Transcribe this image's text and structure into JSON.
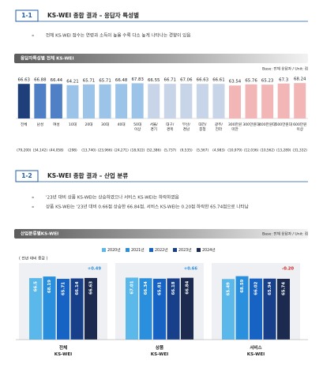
{
  "sections": [
    {
      "number": "1-1",
      "title": "KS-WEI 종합 결과 – 응답자 특성별",
      "bullets": [
        "전체 KS-WEI 점수는 연령과 소득이 높을 수록 다소 높게 나타나는 경향이 있음"
      ]
    },
    {
      "number": "1-2",
      "title": "KS-WEI 종합 결과 – 산업 분류",
      "bullets": [
        "'23년 대비 상품 KS-WEI는 상승하였으나 서비스 KS-WEI는 하락하였음",
        "상품 KS-WEI는 '23년 대비 0.66점 상승한 66.84점, 서비스 KS-WEI는 0.20점 하락한 65.74점으로 나타남"
      ]
    }
  ],
  "chart_data": [
    {
      "type": "bar",
      "title": "응답자특성별 전체 KS-WEI",
      "base_note": "Base: 전체 응답자 / Unit: 점",
      "categories": [
        "전체",
        "남성",
        "여성",
        "10대",
        "20대",
        "30대",
        "40대",
        "50대 이상",
        "서울/ 경기",
        "대구/ 경북",
        "부산/ 경남",
        "대전/ 충청",
        "광주/ 전라",
        "300만원 미만",
        "300만원대",
        "400만원대",
        "500만원대",
        "600만원 이상"
      ],
      "values": [
        66.63,
        66.88,
        66.44,
        64.21,
        65.71,
        65.71,
        66.48,
        67.83,
        66.55,
        66.71,
        67.06,
        66.63,
        66.61,
        63.54,
        65.76,
        65.23,
        67.3,
        68.24
      ],
      "colors": [
        "#1f3f7a",
        "#4f7fc4",
        "#4f7fc4",
        "#9cc3e8",
        "#9cc3e8",
        "#9cc3e8",
        "#9cc3e8",
        "#9cc3e8",
        "#c8d5e8",
        "#c8d5e8",
        "#c8d5e8",
        "#c8d5e8",
        "#c8d5e8",
        "#f3b6b6",
        "#f3b6b6",
        "#f3b6b6",
        "#f3b6b6",
        "#f3b6b6"
      ],
      "bases": [
        "(79,200)",
        "(34,142)",
        "(44,058)",
        "(298)",
        "(13,740)",
        "(23,966)",
        "(24,271)",
        "(18,922)",
        "(52,386)",
        "(5,737)",
        "(9,535)",
        "(5,567)",
        "(4,983)",
        "(10,979)",
        "(12,036)",
        "(10,562)",
        "(13,289)",
        "(31,332)"
      ],
      "ylim": [
        0,
        70
      ]
    },
    {
      "type": "grouped_bar",
      "title": "산업분류별KS-WEI",
      "base_note": "Base: 전체 응답자 / Unit: 점",
      "annotation": "( 전년 대비 증감 )",
      "categories": [
        "전체 KS-WEI",
        "상품 KS-WEI",
        "서비스 KS-WEI"
      ],
      "changes": [
        "+0.49",
        "+0.66",
        "-0.20"
      ],
      "series": [
        {
          "name": "2020년",
          "color": "#5ab8ea",
          "values": [
            66.5,
            67.01,
            65.49
          ]
        },
        {
          "name": "2021년",
          "color": "#2a8fdc",
          "values": [
            68.19,
            66.34,
            68.59
          ]
        },
        {
          "name": "2022년",
          "color": "#1763c4",
          "values": [
            65.71,
            65.81,
            66.02
          ]
        },
        {
          "name": "2023년",
          "color": "#173f8a",
          "values": [
            66.14,
            66.18,
            65.94
          ]
        },
        {
          "name": "2024년",
          "color": "#1b2a4e",
          "values": [
            66.63,
            66.84,
            65.74
          ]
        }
      ],
      "ylim": [
        0,
        70
      ]
    }
  ]
}
